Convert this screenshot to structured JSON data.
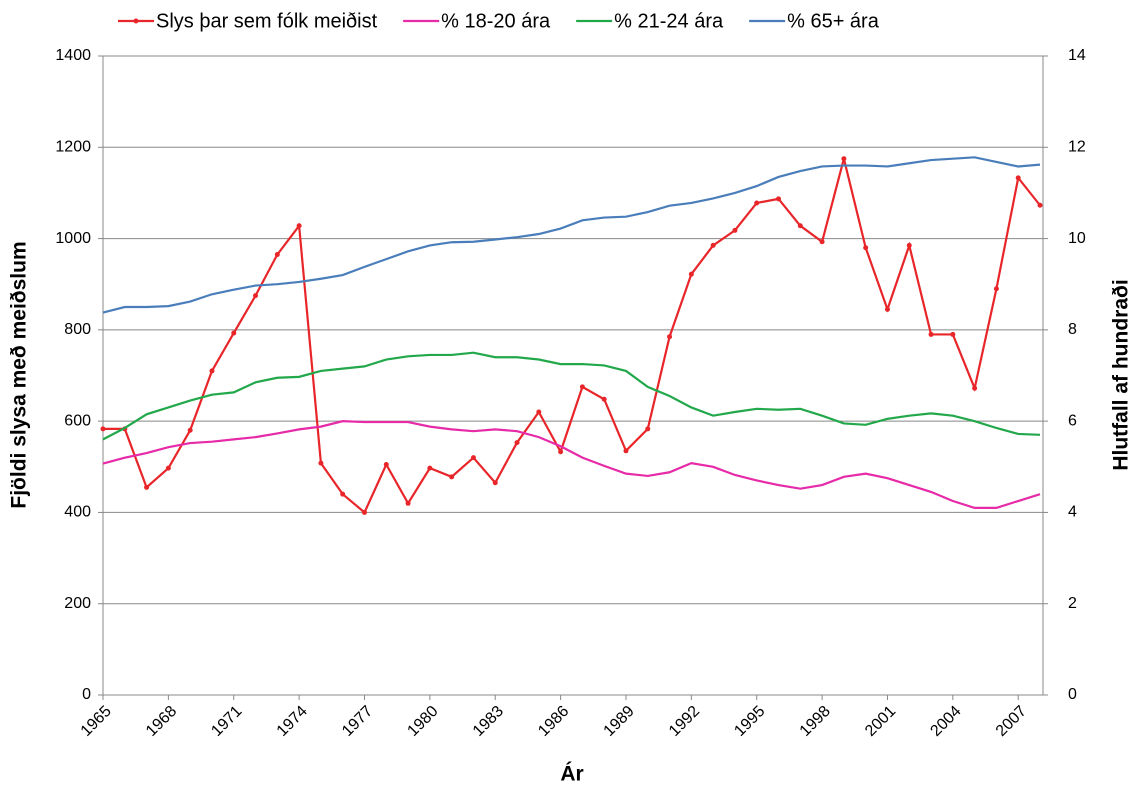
{
  "chart_data": {
    "type": "line",
    "x_label": "Ár",
    "y_label": "Fjöldi slysa með meiðslum",
    "y2_label": "Hlutfall af hundraði",
    "x": [
      1965,
      1966,
      1967,
      1968,
      1969,
      1970,
      1971,
      1972,
      1973,
      1974,
      1975,
      1976,
      1977,
      1978,
      1979,
      1980,
      1981,
      1982,
      1983,
      1984,
      1985,
      1986,
      1987,
      1988,
      1989,
      1990,
      1991,
      1992,
      1993,
      1994,
      1995,
      1996,
      1997,
      1998,
      1999,
      2000,
      2001,
      2002,
      2003,
      2004,
      2005,
      2006,
      2007,
      2008
    ],
    "xlim": [
      1965,
      2008
    ],
    "xticks": [
      1965,
      1968,
      1971,
      1974,
      1977,
      1980,
      1983,
      1986,
      1989,
      1992,
      1995,
      1998,
      2001,
      2004,
      2007
    ],
    "ylim": [
      0,
      1400
    ],
    "yticks": [
      0,
      200,
      400,
      600,
      800,
      1000,
      1200,
      1400
    ],
    "y2lim": [
      0,
      14
    ],
    "y2ticks": [
      0,
      2,
      4,
      6,
      8,
      10,
      12,
      14
    ],
    "grid": true,
    "legend": "top",
    "series": [
      {
        "name": "Slys þar sem fólk meiðist",
        "color": "#e8262a",
        "markers": true,
        "values": [
          583,
          583,
          455,
          497,
          580,
          710,
          793,
          875,
          965,
          1028,
          508,
          440,
          400,
          505,
          420,
          497,
          478,
          520,
          465,
          553,
          620,
          533,
          675,
          648,
          535,
          583,
          785,
          922,
          985,
          1018,
          1078,
          1087,
          1028,
          993,
          1175,
          980,
          845,
          985,
          790,
          790,
          672,
          890,
          1133,
          1073
        ]
      },
      {
        "name": "% 18-20 ára",
        "color": "#e62aa8",
        "axis": "y2",
        "values": [
          5.07,
          5.2,
          5.3,
          5.43,
          5.52,
          5.55,
          5.6,
          5.65,
          5.73,
          5.82,
          5.88,
          6.0,
          5.98,
          5.98,
          5.98,
          5.88,
          5.82,
          5.78,
          5.82,
          5.78,
          5.65,
          5.45,
          5.2,
          5.02,
          4.85,
          4.8,
          4.88,
          5.08,
          5.0,
          4.82,
          4.7,
          4.6,
          4.52,
          4.6,
          4.78,
          4.85,
          4.75,
          4.6,
          4.45,
          4.25,
          4.1,
          4.1,
          4.25,
          4.4
        ]
      },
      {
        "name": "% 21-24 ára",
        "color": "#22a84a",
        "axis": "y2",
        "values": [
          5.6,
          5.85,
          6.15,
          6.3,
          6.45,
          6.58,
          6.63,
          6.85,
          6.95,
          6.97,
          7.1,
          7.15,
          7.2,
          7.35,
          7.42,
          7.45,
          7.45,
          7.5,
          7.4,
          7.4,
          7.35,
          7.25,
          7.25,
          7.22,
          7.1,
          6.75,
          6.55,
          6.3,
          6.12,
          6.2,
          6.27,
          6.25,
          6.27,
          6.12,
          5.95,
          5.92,
          6.05,
          6.12,
          6.17,
          6.12,
          6.0,
          5.85,
          5.72,
          5.7
        ]
      },
      {
        "name": "% 65+ ára",
        "color": "#4a7ebb",
        "axis": "y2",
        "values": [
          8.38,
          8.5,
          8.5,
          8.52,
          8.62,
          8.78,
          8.88,
          8.97,
          9.0,
          9.05,
          9.12,
          9.2,
          9.38,
          9.55,
          9.72,
          9.85,
          9.92,
          9.93,
          9.98,
          10.03,
          10.1,
          10.22,
          10.4,
          10.46,
          10.48,
          10.58,
          10.72,
          10.78,
          10.88,
          11.0,
          11.15,
          11.35,
          11.48,
          11.58,
          11.6,
          11.6,
          11.58,
          11.65,
          11.72,
          11.75,
          11.78,
          11.68,
          11.58,
          11.62
        ]
      }
    ]
  }
}
